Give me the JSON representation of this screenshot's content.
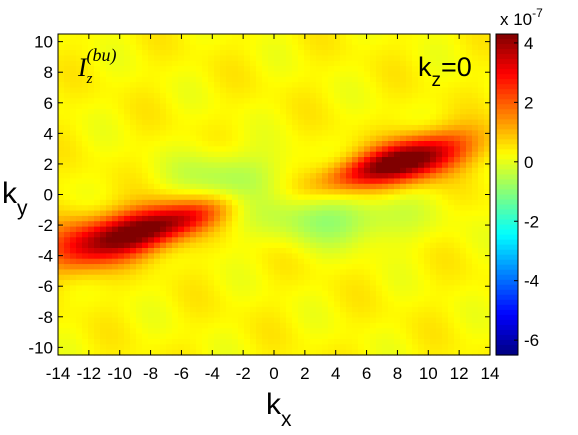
{
  "chart_data": {
    "type": "heatmap",
    "title": "",
    "panel_label": {
      "symbol": "I",
      "subscript": "z",
      "superscript": "(bu)"
    },
    "annotation": {
      "base": "k",
      "subscript": "z",
      "suffix": "=0"
    },
    "xlabel": {
      "base": "k",
      "subscript": "x"
    },
    "ylabel": {
      "base": "k",
      "subscript": "y"
    },
    "xlim": [
      -14,
      14
    ],
    "ylim": [
      -10.5,
      10.5
    ],
    "xticks": [
      -14,
      -12,
      -10,
      -8,
      -6,
      -4,
      -2,
      0,
      2,
      4,
      6,
      8,
      10,
      12,
      14
    ],
    "yticks": [
      -10,
      -8,
      -6,
      -4,
      -2,
      0,
      2,
      4,
      6,
      8,
      10
    ],
    "colorbar": {
      "scale_label": "x 10",
      "scale_exponent": "-7",
      "range": [
        -6.5,
        4.3
      ],
      "ticks": [
        4,
        2,
        0,
        -2,
        -4,
        -6
      ],
      "colormap": "jet"
    },
    "background_value": 0.3,
    "features": [
      {
        "name": "positive lobe",
        "center": [
          9,
          2.2
        ],
        "peak": 4.2,
        "orientation": "diagonal, slope ~0.3"
      },
      {
        "name": "positive lobe",
        "center": [
          -9,
          -2.5
        ],
        "peak": 4.2,
        "orientation": "diagonal, slope ~0.3"
      },
      {
        "name": "negative trough",
        "center": [
          -3,
          1
        ],
        "peak": -0.6
      },
      {
        "name": "negative trough",
        "center": [
          4,
          -1.5
        ],
        "peak": -0.8
      }
    ]
  }
}
